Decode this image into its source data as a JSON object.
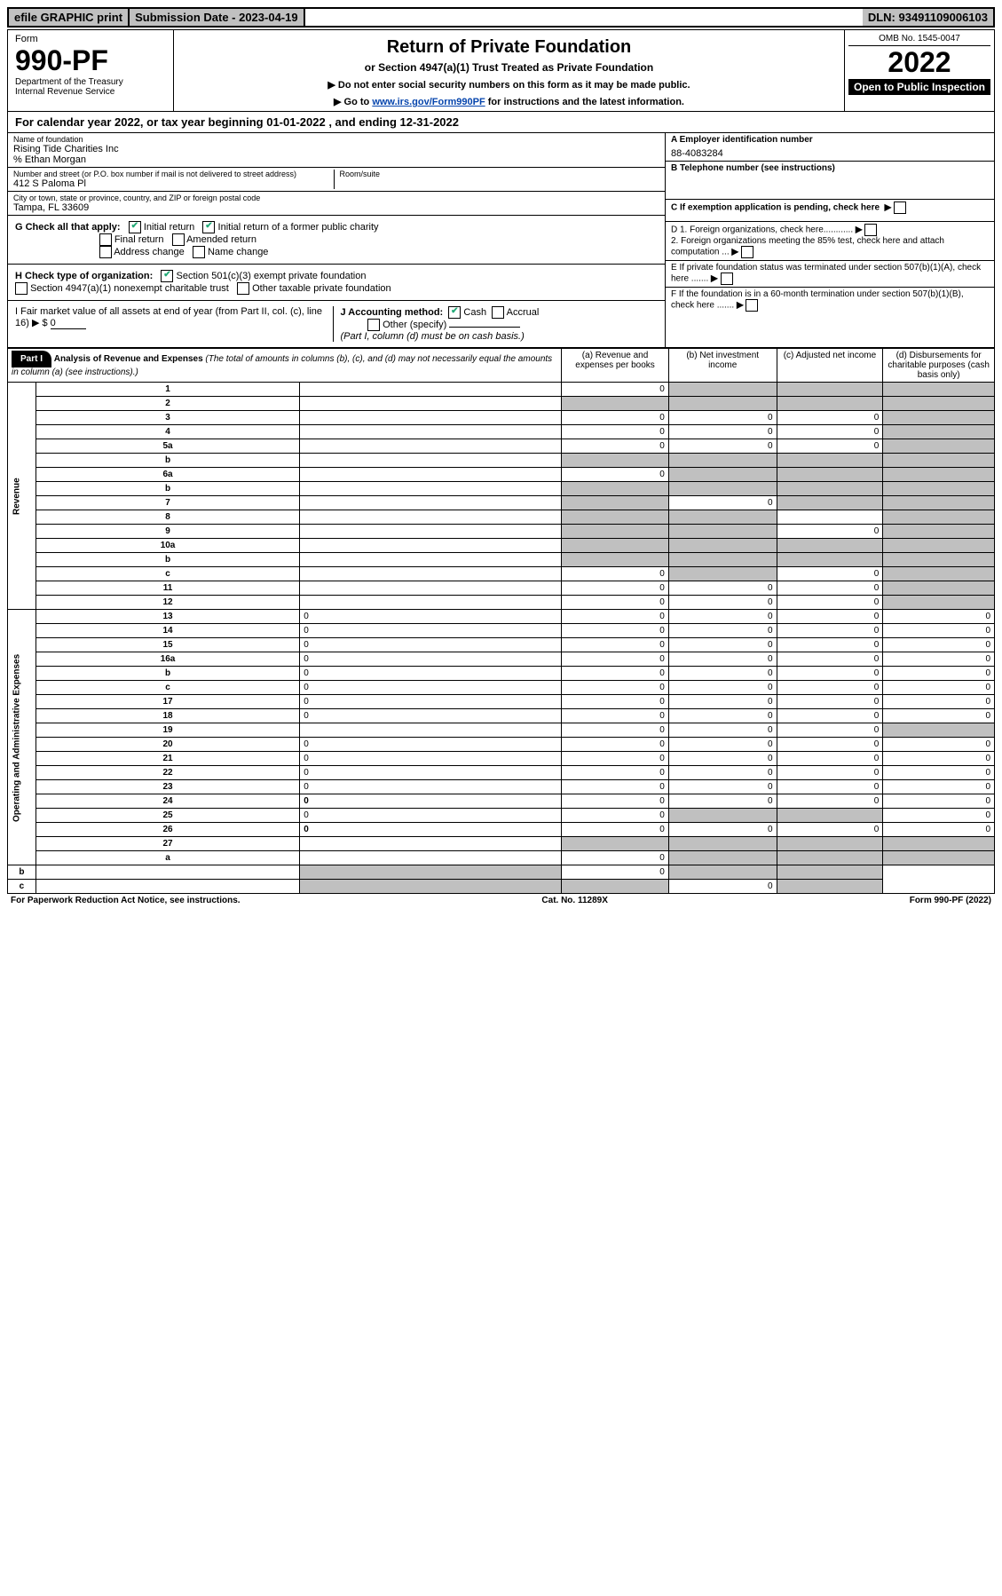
{
  "top": {
    "efile": "efile GRAPHIC print",
    "submission": "Submission Date - 2023-04-19",
    "dln": "DLN: 93491109006103"
  },
  "header": {
    "form": "Form",
    "form_no": "990-PF",
    "dept": "Department of the Treasury",
    "irs": "Internal Revenue Service",
    "title": "Return of Private Foundation",
    "subtitle": "or Section 4947(a)(1) Trust Treated as Private Foundation",
    "note1": "▶ Do not enter social security numbers on this form as it may be made public.",
    "note2_pre": "▶ Go to ",
    "note2_link": "www.irs.gov/Form990PF",
    "note2_post": " for instructions and the latest information.",
    "omb": "OMB No. 1545-0047",
    "year": "2022",
    "open": "Open to Public Inspection"
  },
  "cal_year": "For calendar year 2022, or tax year beginning 01-01-2022           , and ending 12-31-2022",
  "entity": {
    "name_label": "Name of foundation",
    "name": "Rising Tide Charities Inc",
    "care_of": "% Ethan Morgan",
    "addr_label": "Number and street (or P.O. box number if mail is not delivered to street address)",
    "addr": "412 S Paloma Pl",
    "room_label": "Room/suite",
    "room": "",
    "city_label": "City or town, state or province, country, and ZIP or foreign postal code",
    "city": "Tampa, FL  33609",
    "ein_label": "A Employer identification number",
    "ein": "88-4083284",
    "tel_label": "B Telephone number (see instructions)",
    "tel": "",
    "c_label": "C If exemption application is pending, check here",
    "d1": "D 1. Foreign organizations, check here............",
    "d2": "   2. Foreign organizations meeting the 85% test, check here and attach computation ...",
    "e": "E  If private foundation status was terminated under section 507(b)(1)(A), check here .......",
    "f": "F  If the foundation is in a 60-month termination under section 507(b)(1)(B), check here .......",
    "g": "G Check all that apply:",
    "g_initial": "Initial return",
    "g_initial_former": "Initial return of a former public charity",
    "g_final": "Final return",
    "g_amended": "Amended return",
    "g_addr": "Address change",
    "g_name": "Name change",
    "h": "H Check type of organization:",
    "h_501c3": "Section 501(c)(3) exempt private foundation",
    "h_4947": "Section 4947(a)(1) nonexempt charitable trust",
    "h_other": "Other taxable private foundation",
    "i": "I Fair market value of all assets at end of year (from Part II, col. (c), line 16) ▶ $",
    "i_val": "0",
    "j": "J Accounting method:",
    "j_cash": "Cash",
    "j_accrual": "Accrual",
    "j_other": "Other (specify)",
    "j_note": "(Part I, column (d) must be on cash basis.)"
  },
  "part1": {
    "label": "Part I",
    "title": "Analysis of Revenue and Expenses",
    "subtitle": "(The total of amounts in columns (b), (c), and (d) may not necessarily equal the amounts in column (a) (see instructions).)",
    "col_a": "(a)   Revenue and expenses per books",
    "col_b": "(b)   Net investment income",
    "col_c": "(c)   Adjusted net income",
    "col_d": "(d)   Disbursements for charitable purposes (cash basis only)",
    "revenue_label": "Revenue",
    "expenses_label": "Operating and Administrative Expenses"
  },
  "rows": [
    {
      "n": "1",
      "d": "",
      "a": "0",
      "b": "",
      "c": "",
      "sb": true,
      "sc": true,
      "sd": true
    },
    {
      "n": "2",
      "d": "",
      "a": "",
      "b": "",
      "c": "",
      "sa": true,
      "sb": true,
      "sc": true,
      "sd": true,
      "bold": false
    },
    {
      "n": "3",
      "d": "",
      "a": "0",
      "b": "0",
      "c": "0",
      "sd": true
    },
    {
      "n": "4",
      "d": "",
      "a": "0",
      "b": "0",
      "c": "0",
      "sd": true
    },
    {
      "n": "5a",
      "d": "",
      "a": "0",
      "b": "0",
      "c": "0",
      "sd": true
    },
    {
      "n": "b",
      "d": "",
      "a": "",
      "b": "",
      "c": "",
      "sa": true,
      "sb": true,
      "sc": true,
      "sd": true
    },
    {
      "n": "6a",
      "d": "",
      "a": "0",
      "b": "",
      "c": "",
      "sb": true,
      "sc": true,
      "sd": true
    },
    {
      "n": "b",
      "d": "",
      "a": "",
      "b": "",
      "c": "",
      "sa": true,
      "sb": true,
      "sc": true,
      "sd": true
    },
    {
      "n": "7",
      "d": "",
      "a": "",
      "b": "0",
      "c": "",
      "sa": true,
      "sc": true,
      "sd": true
    },
    {
      "n": "8",
      "d": "",
      "a": "",
      "b": "",
      "c": "",
      "sa": true,
      "sb": true,
      "sd": true
    },
    {
      "n": "9",
      "d": "",
      "a": "",
      "b": "",
      "c": "0",
      "sa": true,
      "sb": true,
      "sd": true
    },
    {
      "n": "10a",
      "d": "",
      "a": "",
      "b": "",
      "c": "",
      "sa": true,
      "sb": true,
      "sc": true,
      "sd": true
    },
    {
      "n": "b",
      "d": "",
      "a": "",
      "b": "",
      "c": "",
      "sa": true,
      "sb": true,
      "sc": true,
      "sd": true
    },
    {
      "n": "c",
      "d": "",
      "a": "0",
      "b": "",
      "c": "0",
      "sb": true,
      "sd": true
    },
    {
      "n": "11",
      "d": "",
      "a": "0",
      "b": "0",
      "c": "0",
      "sd": true
    },
    {
      "n": "12",
      "d": "",
      "a": "0",
      "b": "0",
      "c": "0",
      "sd": true,
      "bold": true
    },
    {
      "n": "13",
      "d": "0",
      "a": "0",
      "b": "0",
      "c": "0"
    },
    {
      "n": "14",
      "d": "0",
      "a": "0",
      "b": "0",
      "c": "0"
    },
    {
      "n": "15",
      "d": "0",
      "a": "0",
      "b": "0",
      "c": "0"
    },
    {
      "n": "16a",
      "d": "0",
      "a": "0",
      "b": "0",
      "c": "0"
    },
    {
      "n": "b",
      "d": "0",
      "a": "0",
      "b": "0",
      "c": "0"
    },
    {
      "n": "c",
      "d": "0",
      "a": "0",
      "b": "0",
      "c": "0"
    },
    {
      "n": "17",
      "d": "0",
      "a": "0",
      "b": "0",
      "c": "0"
    },
    {
      "n": "18",
      "d": "0",
      "a": "0",
      "b": "0",
      "c": "0"
    },
    {
      "n": "19",
      "d": "",
      "a": "0",
      "b": "0",
      "c": "0",
      "sd": true
    },
    {
      "n": "20",
      "d": "0",
      "a": "0",
      "b": "0",
      "c": "0"
    },
    {
      "n": "21",
      "d": "0",
      "a": "0",
      "b": "0",
      "c": "0"
    },
    {
      "n": "22",
      "d": "0",
      "a": "0",
      "b": "0",
      "c": "0"
    },
    {
      "n": "23",
      "d": "0",
      "a": "0",
      "b": "0",
      "c": "0"
    },
    {
      "n": "24",
      "d": "0",
      "a": "0",
      "b": "0",
      "c": "0",
      "bold": true
    },
    {
      "n": "25",
      "d": "0",
      "a": "0",
      "b": "",
      "c": "",
      "sb": true,
      "sc": true
    },
    {
      "n": "26",
      "d": "0",
      "a": "0",
      "b": "0",
      "c": "0",
      "bold": true
    },
    {
      "n": "27",
      "d": "",
      "a": "",
      "b": "",
      "c": "",
      "sa": true,
      "sb": true,
      "sc": true,
      "sd": true
    },
    {
      "n": "a",
      "d": "",
      "a": "0",
      "b": "",
      "c": "",
      "sb": true,
      "sc": true,
      "sd": true,
      "bold": true
    },
    {
      "n": "b",
      "d": "",
      "a": "",
      "b": "0",
      "c": "",
      "sa": true,
      "sc": true,
      "sd": true,
      "bold": true
    },
    {
      "n": "c",
      "d": "",
      "a": "",
      "b": "",
      "c": "0",
      "sa": true,
      "sb": true,
      "sd": true,
      "bold": true
    }
  ],
  "footer": {
    "left": "For Paperwork Reduction Act Notice, see instructions.",
    "center": "Cat. No. 11289X",
    "right": "Form 990-PF (2022)"
  },
  "colors": {
    "shaded": "#c0c0c0",
    "link": "#0645ad",
    "check": "#22aa77"
  }
}
